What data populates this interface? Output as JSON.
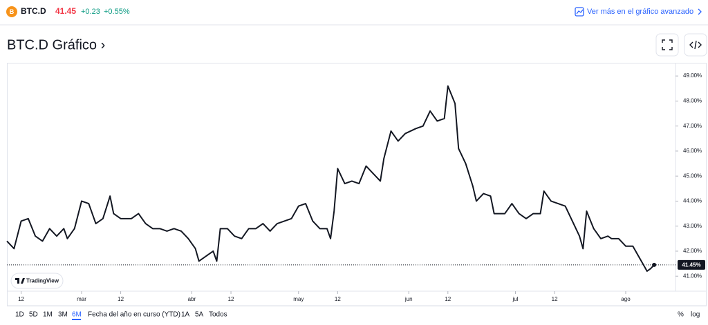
{
  "header": {
    "symbol": "BTC.D",
    "price": "41.45",
    "change": "+0.23",
    "change_pct": "+0.55%",
    "link": "Ver más en el gráfico avanzado"
  },
  "title": "BTC.D Gráfico ›",
  "chart_data": {
    "type": "line",
    "color": "#131722",
    "x": [
      -4,
      -2,
      0,
      2,
      4,
      6,
      8,
      10,
      12,
      13,
      15,
      17,
      19,
      21,
      23,
      25,
      26,
      28,
      31,
      33,
      35,
      37,
      39,
      41,
      43,
      45,
      47,
      49,
      50,
      52,
      54,
      55,
      56,
      58,
      60,
      62,
      64,
      66,
      68,
      70,
      72,
      76,
      78,
      80,
      82,
      84,
      86,
      87,
      88,
      89,
      91,
      93,
      95,
      97,
      99,
      101,
      102,
      104,
      106,
      108,
      111,
      113,
      115,
      117,
      119,
      120,
      122,
      123,
      125,
      127,
      128,
      130,
      132,
      133,
      136,
      138,
      140,
      142,
      144,
      146,
      147,
      149,
      151,
      153,
      155,
      157,
      158,
      159,
      161,
      163,
      165,
      166,
      168,
      170,
      172,
      174,
      176,
      177,
      178
    ],
    "values": [
      42.4,
      42.1,
      43.2,
      43.3,
      42.6,
      42.4,
      42.9,
      42.6,
      42.9,
      42.5,
      42.9,
      44.0,
      43.9,
      43.1,
      43.3,
      44.2,
      43.5,
      43.3,
      43.3,
      43.5,
      43.1,
      42.9,
      42.9,
      42.8,
      42.9,
      42.8,
      42.5,
      42.1,
      41.6,
      41.8,
      42.0,
      41.6,
      42.9,
      42.9,
      42.6,
      42.5,
      42.9,
      42.9,
      43.1,
      42.8,
      43.1,
      43.3,
      43.8,
      43.9,
      43.2,
      42.9,
      42.9,
      42.5,
      43.6,
      45.3,
      44.7,
      44.8,
      44.7,
      45.4,
      45.1,
      44.8,
      45.7,
      46.8,
      46.4,
      46.7,
      46.9,
      47.0,
      47.6,
      47.2,
      47.3,
      48.6,
      47.9,
      46.1,
      45.5,
      44.6,
      44.0,
      44.3,
      44.2,
      43.5,
      43.5,
      43.9,
      43.5,
      43.3,
      43.5,
      43.5,
      44.4,
      44.0,
      43.9,
      43.8,
      43.2,
      42.6,
      42.1,
      43.6,
      42.9,
      42.5,
      42.6,
      42.5,
      42.5,
      42.2,
      42.2,
      41.7,
      41.2,
      41.3,
      41.45
    ],
    "xlim": [
      -4,
      184
    ],
    "xticks": [
      {
        "value": 0,
        "label": "12"
      },
      {
        "value": 17,
        "label": "mar"
      },
      {
        "value": 28,
        "label": "12"
      },
      {
        "value": 48,
        "label": "abr"
      },
      {
        "value": 59,
        "label": "12"
      },
      {
        "value": 78,
        "label": "may"
      },
      {
        "value": 89,
        "label": "12"
      },
      {
        "value": 109,
        "label": "jun"
      },
      {
        "value": 120,
        "label": "12"
      },
      {
        "value": 139,
        "label": "jul"
      },
      {
        "value": 150,
        "label": "12"
      },
      {
        "value": 170,
        "label": "ago"
      }
    ],
    "ylim": [
      40.4,
      49.5
    ],
    "yticks": [
      {
        "value": 41,
        "label": "41.00%"
      },
      {
        "value": 42,
        "label": "42.00%"
      },
      {
        "value": 43,
        "label": "43.00%"
      },
      {
        "value": 44,
        "label": "44.00%"
      },
      {
        "value": 45,
        "label": "45.00%"
      },
      {
        "value": 46,
        "label": "46.00%"
      },
      {
        "value": 47,
        "label": "47.00%"
      },
      {
        "value": 48,
        "label": "48.00%"
      },
      {
        "value": 49,
        "label": "49.00%"
      }
    ],
    "last_value": 41.45,
    "last_value_label": "41.45%",
    "watermark": "TradingView"
  },
  "toolbar": {
    "ranges": [
      "1D",
      "5D",
      "1M",
      "3M",
      "6M",
      "Fecha del año en curso (YTD)",
      "1A",
      "5A",
      "Todos"
    ],
    "percent": "%",
    "log": "log"
  }
}
